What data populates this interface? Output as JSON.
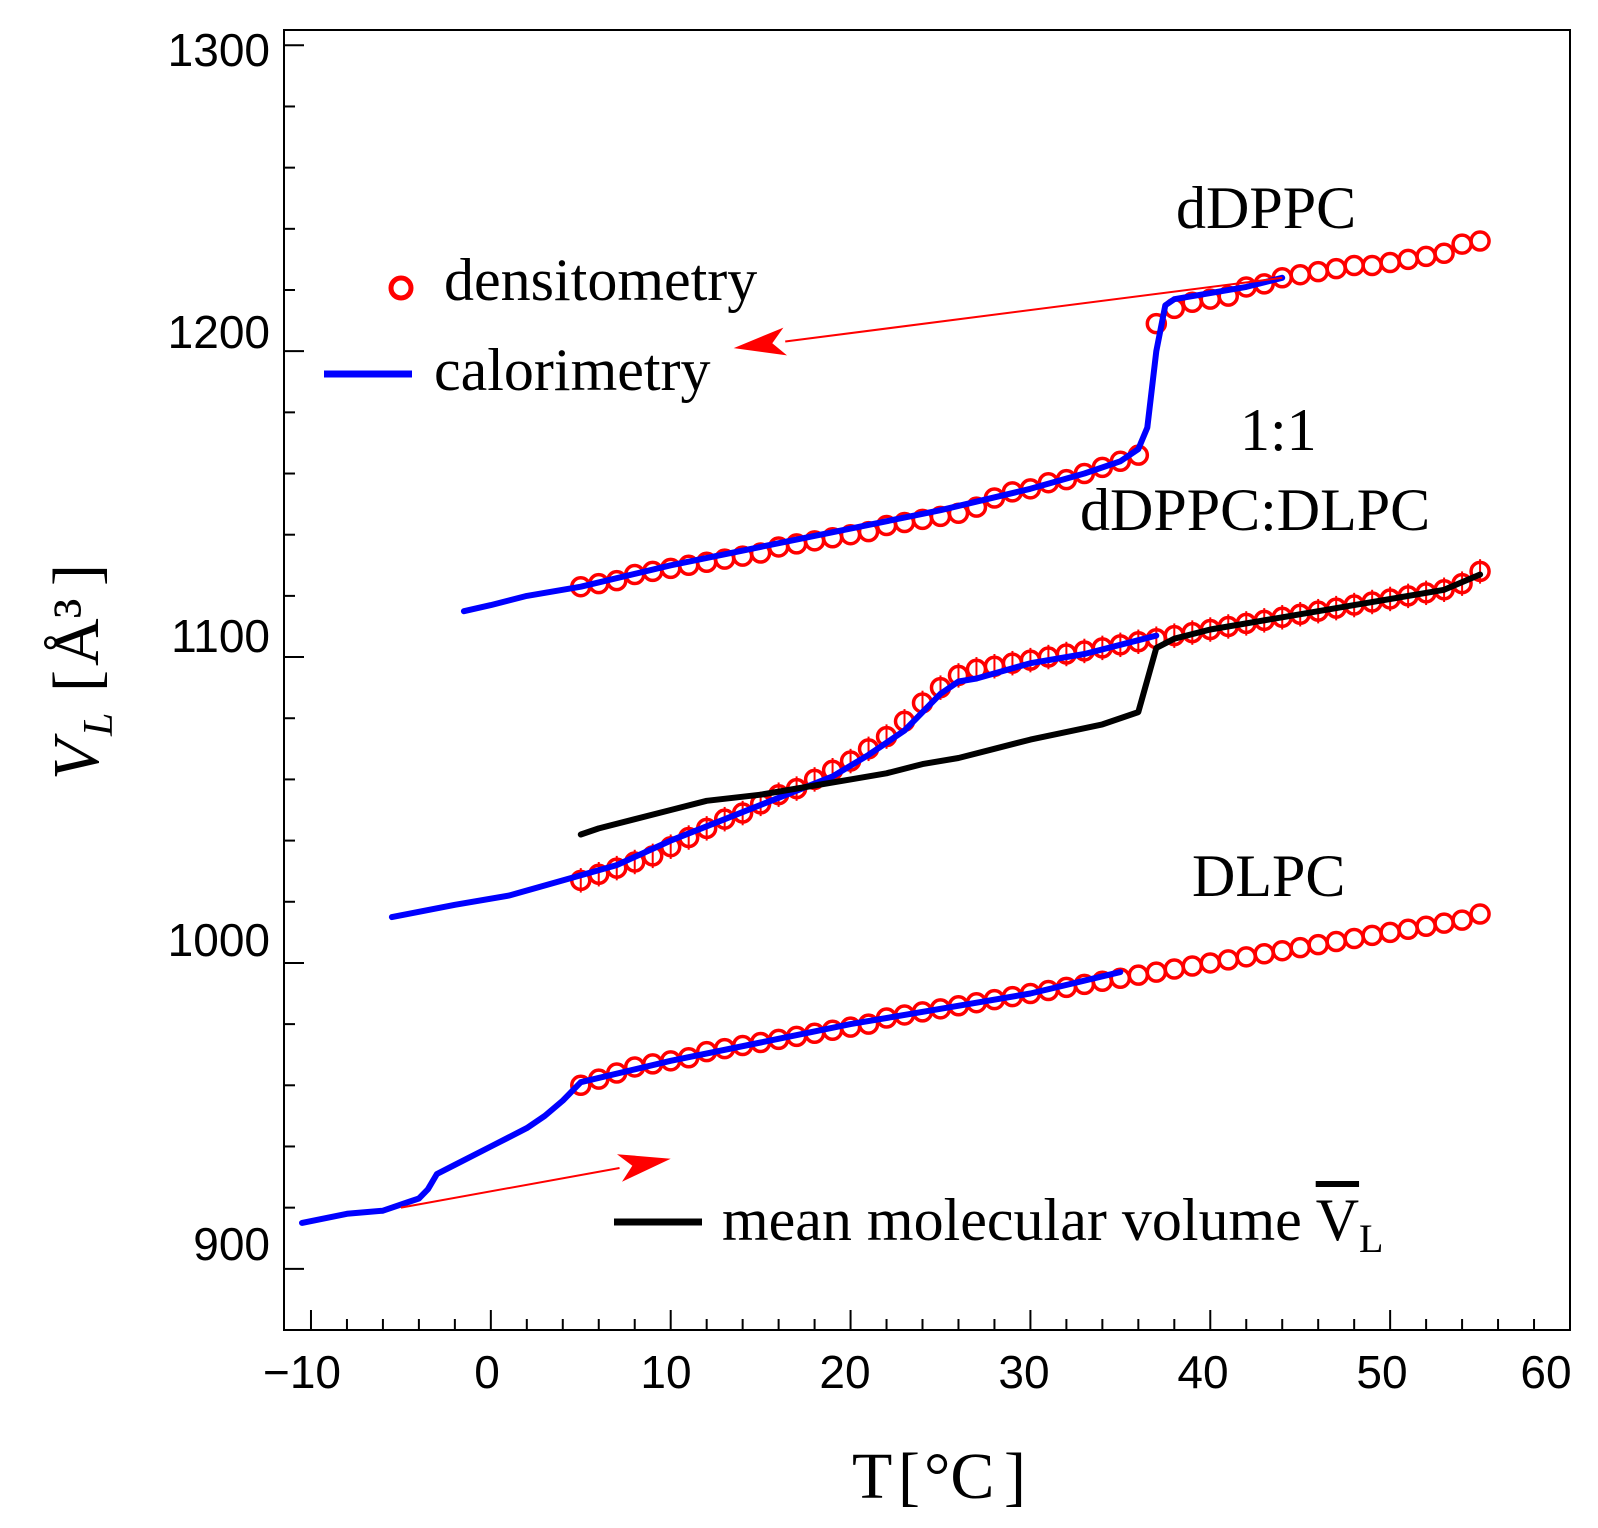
{
  "chart_data": {
    "type": "line",
    "title": "",
    "xlabel": "T",
    "xlabel_unit": "°C",
    "ylabel": "V",
    "ylabel_sub": "L",
    "ylabel_unit": "Å³",
    "xlim": [
      -11.5,
      60
    ],
    "ylim": [
      880,
      1305
    ],
    "x_ticks": [
      -10,
      0,
      10,
      20,
      30,
      40,
      50,
      60
    ],
    "x_tick_labels": [
      "−10",
      "0",
      "10",
      "20",
      "30",
      "40",
      "50",
      "60"
    ],
    "y_ticks": [
      900,
      1000,
      1100,
      1200,
      1300
    ],
    "y_tick_labels": [
      "900",
      "1000",
      "1100",
      "1200",
      "1300"
    ],
    "legend": {
      "densitometry": "densitometry",
      "calorimetry": "calorimetry",
      "mean": "mean molecular volume ",
      "mean_symbol": "V",
      "mean_sub": "L"
    },
    "annotations": {
      "dDPPC": "dDPPC",
      "mix_ratio": "1:1",
      "mix_name": "dDPPC:DLPC",
      "DLPC": "DLPC"
    },
    "colors": {
      "densitometry": "#ff0000",
      "calorimetry": "#0000ff",
      "mean": "#000000",
      "arrow": "#ff0000"
    },
    "arrows": [
      {
        "from": [
          44,
          1224
        ],
        "to": [
          13.5,
          1201
        ]
      },
      {
        "from": [
          -5,
          920
        ],
        "to": [
          10,
          936
        ]
      }
    ],
    "series": [
      {
        "name": "dDPPC densitometry",
        "kind": "markers",
        "x": [
          5,
          6,
          7,
          8,
          9,
          10,
          11,
          12,
          13,
          14,
          15,
          16,
          17,
          18,
          19,
          20,
          21,
          22,
          23,
          24,
          25,
          26,
          27,
          28,
          29,
          30,
          31,
          32,
          33,
          34,
          35,
          36,
          37,
          38,
          39,
          40,
          41,
          42,
          43,
          44,
          45,
          46,
          47,
          48,
          49,
          50,
          51,
          52,
          53,
          54,
          55
        ],
        "y": [
          1123,
          1124,
          1125,
          1127,
          1128,
          1129,
          1130,
          1131,
          1132,
          1133,
          1134,
          1136,
          1137,
          1138,
          1139,
          1140,
          1141,
          1143,
          1144,
          1145,
          1146,
          1147,
          1149,
          1152,
          1154,
          1155,
          1157,
          1158,
          1160,
          1162,
          1164,
          1166,
          1209,
          1214,
          1216,
          1217,
          1218,
          1221,
          1222,
          1224,
          1225,
          1226,
          1227,
          1228,
          1228,
          1229,
          1230,
          1231,
          1232,
          1235,
          1236
        ]
      },
      {
        "name": "1:1 dDPPC:DLPC densitometry",
        "kind": "markers_errorbars",
        "error": 4,
        "x": [
          5,
          6,
          7,
          8,
          9,
          10,
          11,
          12,
          13,
          14,
          15,
          16,
          17,
          18,
          19,
          20,
          21,
          22,
          23,
          24,
          25,
          26,
          27,
          28,
          29,
          30,
          31,
          32,
          33,
          34,
          35,
          36,
          37,
          38,
          39,
          40,
          41,
          42,
          43,
          44,
          45,
          46,
          47,
          48,
          49,
          50,
          51,
          52,
          53,
          54,
          55
        ],
        "y": [
          1027,
          1029,
          1031,
          1033,
          1035,
          1038,
          1041,
          1044,
          1047,
          1049,
          1052,
          1055,
          1057,
          1060,
          1063,
          1066,
          1070,
          1074,
          1079,
          1085,
          1090,
          1094,
          1096,
          1097,
          1098,
          1099,
          1100,
          1101,
          1102,
          1103,
          1104,
          1105,
          1106,
          1107,
          1108,
          1109,
          1110,
          1111,
          1112,
          1113,
          1114,
          1115,
          1116,
          1117,
          1118,
          1119,
          1120,
          1121,
          1122,
          1124,
          1128
        ]
      },
      {
        "name": "DLPC densitometry",
        "kind": "markers",
        "x": [
          5,
          6,
          7,
          8,
          9,
          10,
          11,
          12,
          13,
          14,
          15,
          16,
          17,
          18,
          19,
          20,
          21,
          22,
          23,
          24,
          25,
          26,
          27,
          28,
          29,
          30,
          31,
          32,
          33,
          34,
          35,
          36,
          37,
          38,
          39,
          40,
          41,
          42,
          43,
          44,
          45,
          46,
          47,
          48,
          49,
          50,
          51,
          52,
          53,
          54,
          55
        ],
        "y": [
          960,
          962,
          964,
          966,
          967,
          968,
          969,
          971,
          972,
          973,
          974,
          975,
          976,
          977,
          978,
          979,
          980,
          982,
          983,
          984,
          985,
          986,
          987,
          988,
          989,
          990,
          991,
          992,
          993,
          994,
          995,
          996,
          997,
          998,
          999,
          1000,
          1001,
          1002,
          1003,
          1004,
          1005,
          1006,
          1007,
          1008,
          1009,
          1010,
          1011,
          1012,
          1013,
          1014,
          1016
        ]
      },
      {
        "name": "dDPPC calorimetry",
        "kind": "line",
        "x": [
          -1.5,
          0,
          2,
          5,
          10,
          15,
          20,
          25,
          30,
          33,
          35,
          36,
          36.5,
          37,
          37.5,
          38,
          40,
          42,
          44
        ],
        "y": [
          1115,
          1117,
          1120,
          1123,
          1130,
          1136,
          1142,
          1148,
          1155,
          1160,
          1164,
          1168,
          1175,
          1200,
          1215,
          1217,
          1219,
          1221,
          1224
        ]
      },
      {
        "name": "1:1 dDPPC:DLPC calorimetry",
        "kind": "line",
        "x": [
          -5.5,
          -2,
          1,
          4,
          7,
          10,
          13,
          16,
          19,
          21,
          23,
          24,
          25,
          26,
          27,
          30,
          33,
          37
        ],
        "y": [
          1015,
          1019,
          1022,
          1027,
          1032,
          1040,
          1047,
          1054,
          1061,
          1068,
          1076,
          1082,
          1088,
          1092,
          1093,
          1098,
          1101,
          1107
        ]
      },
      {
        "name": "DLPC calorimetry",
        "kind": "line",
        "x": [
          -10.5,
          -8,
          -6,
          -4.5,
          -4,
          -3.5,
          -3,
          -2,
          0,
          1,
          2,
          3,
          4,
          5,
          10,
          15,
          20,
          25,
          30,
          35
        ],
        "y": [
          915,
          918,
          919,
          922,
          923,
          926,
          931,
          934,
          940,
          943,
          946,
          950,
          955,
          961,
          968,
          974,
          980,
          985,
          990,
          997
        ]
      },
      {
        "name": "mean molecular volume",
        "kind": "line",
        "x": [
          5,
          6,
          8,
          10,
          12,
          15,
          18,
          20,
          22,
          24,
          26,
          28,
          30,
          34,
          36,
          37,
          38,
          40,
          44,
          48,
          53,
          55
        ],
        "y": [
          1042,
          1044,
          1047,
          1050,
          1053,
          1055,
          1058,
          1060,
          1062,
          1065,
          1067,
          1070,
          1073,
          1078,
          1082,
          1103,
          1106,
          1109,
          1113,
          1117,
          1122,
          1127
        ]
      }
    ]
  }
}
